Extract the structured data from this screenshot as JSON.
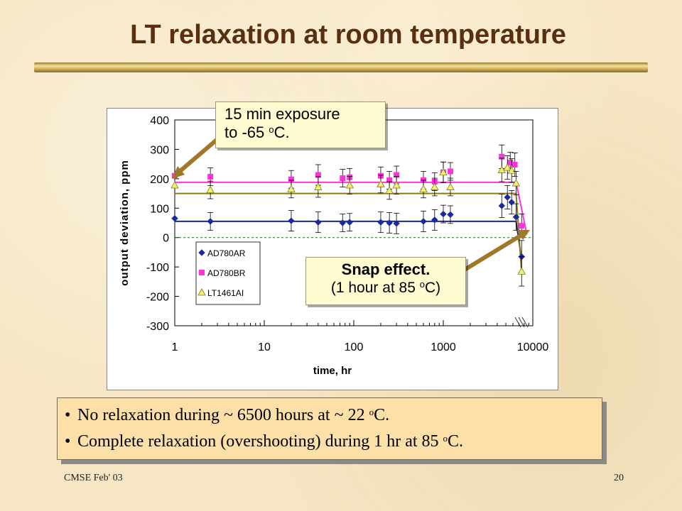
{
  "slide": {
    "title": "LT relaxation at room temperature",
    "footer_left": "CMSE Feb' 03",
    "page_number": "20"
  },
  "callouts": {
    "exposure_line1": "15 min exposure",
    "exposure_line2_pre": "to -65 ",
    "exposure_sup": "o",
    "exposure_line2_post": "C.",
    "snap_title": "Snap effect.",
    "snap_line2_pre": "(1 hour at 85 ",
    "snap_sup": "o",
    "snap_line2_post": "C)"
  },
  "bullets": [
    {
      "pre": "No relaxation during ~ 6500 hours at ~ 22 ",
      "sup": "o",
      "post": "C."
    },
    {
      "pre": "Complete relaxation (overshooting) during 1 hr at 85 ",
      "sup": "o",
      "post": "C."
    }
  ],
  "colors": {
    "title": "#5a2f10",
    "AD780AR": "#1a2a9a",
    "AD780BR": "#ff33dd",
    "LT1461AI": "#f7f06a",
    "LT1461AI_line": "#8a7a10",
    "arrow": "#a07828"
  },
  "chart_data": {
    "type": "scatter",
    "xlabel": "time, hr",
    "ylabel": "output deviation, ppm",
    "x_scale": "log",
    "xlim": [
      1,
      10000
    ],
    "ylim": [
      -300,
      400
    ],
    "x_ticks": [
      1,
      10,
      100,
      1000,
      10000
    ],
    "x_tick_labels": [
      "1",
      "10",
      "100",
      "1000",
      "10000"
    ],
    "y_ticks": [
      -300,
      -200,
      -100,
      0,
      100,
      200,
      300,
      400
    ],
    "y_tick_labels": [
      "-300",
      "-200",
      "-100",
      "0",
      "100",
      "200",
      "300",
      "400"
    ],
    "legend_position": "bottom-left",
    "zero_line": "dashed",
    "series": [
      {
        "name": "AD780AR",
        "marker": "diamond",
        "points": [
          {
            "x": 1,
            "y": 65,
            "err": 0
          },
          {
            "x": 2.5,
            "y": 55,
            "err": 30
          },
          {
            "x": 20,
            "y": 57,
            "err": 35
          },
          {
            "x": 40,
            "y": 52,
            "err": 35
          },
          {
            "x": 75,
            "y": 50,
            "err": 30
          },
          {
            "x": 90,
            "y": 52,
            "err": 30
          },
          {
            "x": 200,
            "y": 52,
            "err": 35
          },
          {
            "x": 250,
            "y": 50,
            "err": 35
          },
          {
            "x": 300,
            "y": 48,
            "err": 35
          },
          {
            "x": 600,
            "y": 55,
            "err": 35
          },
          {
            "x": 800,
            "y": 60,
            "err": 35
          },
          {
            "x": 1000,
            "y": 80,
            "err": 30
          },
          {
            "x": 1200,
            "y": 78,
            "err": 30
          },
          {
            "x": 4500,
            "y": 108,
            "err": 40
          },
          {
            "x": 5200,
            "y": 137,
            "err": 40
          },
          {
            "x": 5800,
            "y": 120,
            "err": 40
          },
          {
            "x": 6500,
            "y": 70,
            "err": 45
          },
          {
            "x": 7500,
            "y": -65,
            "err": 55
          }
        ],
        "fit": [
          [
            1,
            55
          ],
          [
            6500,
            55
          ],
          [
            7500,
            -75
          ]
        ]
      },
      {
        "name": "AD780BR",
        "marker": "square",
        "points": [
          {
            "x": 1,
            "y": 210,
            "err": 0
          },
          {
            "x": 2.5,
            "y": 207,
            "err": 30
          },
          {
            "x": 20,
            "y": 198,
            "err": 30
          },
          {
            "x": 40,
            "y": 213,
            "err": 35
          },
          {
            "x": 75,
            "y": 202,
            "err": 30
          },
          {
            "x": 90,
            "y": 205,
            "err": 30
          },
          {
            "x": 200,
            "y": 210,
            "err": 30
          },
          {
            "x": 250,
            "y": 195,
            "err": 30
          },
          {
            "x": 300,
            "y": 213,
            "err": 30
          },
          {
            "x": 600,
            "y": 195,
            "err": 30
          },
          {
            "x": 800,
            "y": 190,
            "err": 30
          },
          {
            "x": 1000,
            "y": 222,
            "err": 35
          },
          {
            "x": 1200,
            "y": 225,
            "err": 30
          },
          {
            "x": 4500,
            "y": 275,
            "err": 40
          },
          {
            "x": 5600,
            "y": 255,
            "err": 35
          },
          {
            "x": 6300,
            "y": 248,
            "err": 40
          },
          {
            "x": 7500,
            "y": 40,
            "err": 40
          }
        ],
        "fit": [
          [
            1,
            188
          ],
          [
            6500,
            188
          ],
          [
            8600,
            10
          ]
        ]
      },
      {
        "name": "LT1461AI",
        "marker": "triangle",
        "points": [
          {
            "x": 1,
            "y": 178,
            "err": 0
          },
          {
            "x": 2.5,
            "y": 162,
            "err": 30
          },
          {
            "x": 20,
            "y": 165,
            "err": 30
          },
          {
            "x": 40,
            "y": 172,
            "err": 35
          },
          {
            "x": 90,
            "y": 178,
            "err": 30
          },
          {
            "x": 200,
            "y": 182,
            "err": 30
          },
          {
            "x": 250,
            "y": 160,
            "err": 30
          },
          {
            "x": 300,
            "y": 178,
            "err": 30
          },
          {
            "x": 600,
            "y": 165,
            "err": 30
          },
          {
            "x": 800,
            "y": 172,
            "err": 30
          },
          {
            "x": 1000,
            "y": 222,
            "err": 35
          },
          {
            "x": 1200,
            "y": 172,
            "err": 30
          },
          {
            "x": 4500,
            "y": 230,
            "err": 40
          },
          {
            "x": 5200,
            "y": 238,
            "err": 40
          },
          {
            "x": 5800,
            "y": 228,
            "err": 40
          },
          {
            "x": 6500,
            "y": 185,
            "err": 40
          },
          {
            "x": 7500,
            "y": -115,
            "err": 50
          }
        ],
        "fit": [
          [
            1,
            150
          ],
          [
            6500,
            150
          ],
          [
            7500,
            -120
          ]
        ]
      }
    ]
  }
}
